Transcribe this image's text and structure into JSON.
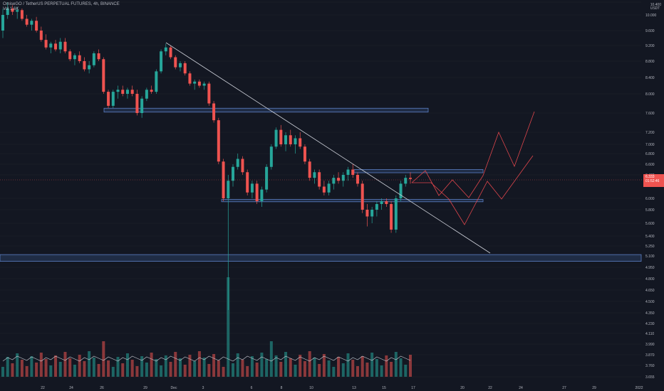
{
  "header": {
    "symbol_line": "OmiseGO / TetherUS PERPETUAL FUTURES, 4h, BINANCE",
    "indicator_label": "Vol 1.6K"
  },
  "price_tag": {
    "price": "6.333",
    "countdown": "01:52:46"
  },
  "axis_unit": {
    "top": "10.400",
    "unit": "USDT"
  },
  "chart_data": {
    "type": "candlestick",
    "y_ticks": [
      "10.400",
      "10.000",
      "9.600",
      "9.200",
      "8.800",
      "8.400",
      "8.000",
      "7.600",
      "7.200",
      "7.000",
      "6.800",
      "6.600",
      "6.400",
      "6.000",
      "5.800",
      "5.600",
      "5.400",
      "5.250",
      "5.100",
      "4.950",
      "4.800",
      "4.650",
      "4.500",
      "4.350",
      "4.230",
      "4.110",
      "3.990",
      "3.870",
      "3.760",
      "3.655"
    ],
    "x_ticks": [
      "22",
      "24",
      "26",
      "29",
      "Dec",
      "3",
      "6",
      "8",
      "10",
      "13",
      "15",
      "17",
      "20",
      "22",
      "24",
      "27",
      "29",
      "2022"
    ],
    "levels": [
      {
        "kind": "resistance-zone",
        "price_hi": 7.7,
        "price_lo": 7.62
      },
      {
        "kind": "zone",
        "price_hi": 6.5,
        "price_lo": 6.44
      },
      {
        "kind": "zone",
        "price_hi": 5.98,
        "price_lo": 5.94
      },
      {
        "kind": "support-zone",
        "price_hi": 5.12,
        "price_lo": 5.02
      }
    ],
    "trendline": {
      "from": {
        "x": "27 Nov",
        "price": 9.3
      },
      "to": {
        "x": "22 Dec",
        "price": 5.1
      }
    },
    "candles": [
      {
        "o": 9.6,
        "h": 10.2,
        "l": 9.4,
        "c": 10.0
      },
      {
        "o": 10.0,
        "h": 10.4,
        "l": 9.9,
        "c": 10.2
      },
      {
        "o": 10.2,
        "h": 10.3,
        "l": 10.0,
        "c": 10.1
      },
      {
        "o": 10.1,
        "h": 10.25,
        "l": 9.9,
        "c": 10.15
      },
      {
        "o": 10.15,
        "h": 10.2,
        "l": 9.85,
        "c": 9.9
      },
      {
        "o": 9.9,
        "h": 10.0,
        "l": 9.7,
        "c": 9.75
      },
      {
        "o": 9.75,
        "h": 9.9,
        "l": 9.6,
        "c": 9.85
      },
      {
        "o": 9.85,
        "h": 9.95,
        "l": 9.55,
        "c": 9.6
      },
      {
        "o": 9.6,
        "h": 9.7,
        "l": 9.3,
        "c": 9.35
      },
      {
        "o": 9.35,
        "h": 9.5,
        "l": 9.1,
        "c": 9.15
      },
      {
        "o": 9.15,
        "h": 9.3,
        "l": 9.0,
        "c": 9.25
      },
      {
        "o": 9.25,
        "h": 9.35,
        "l": 9.05,
        "c": 9.1
      },
      {
        "o": 9.1,
        "h": 9.4,
        "l": 9.0,
        "c": 9.3
      },
      {
        "o": 9.3,
        "h": 9.4,
        "l": 9.0,
        "c": 9.05
      },
      {
        "o": 9.05,
        "h": 9.1,
        "l": 8.8,
        "c": 8.85
      },
      {
        "o": 8.85,
        "h": 9.0,
        "l": 8.7,
        "c": 8.95
      },
      {
        "o": 8.95,
        "h": 9.05,
        "l": 8.75,
        "c": 8.8
      },
      {
        "o": 8.8,
        "h": 8.9,
        "l": 8.55,
        "c": 8.6
      },
      {
        "o": 8.6,
        "h": 8.8,
        "l": 8.5,
        "c": 8.7
      },
      {
        "o": 8.7,
        "h": 9.05,
        "l": 8.65,
        "c": 9.0
      },
      {
        "o": 9.0,
        "h": 9.1,
        "l": 8.8,
        "c": 8.85
      },
      {
        "o": 8.85,
        "h": 8.9,
        "l": 8.0,
        "c": 8.05
      },
      {
        "o": 8.05,
        "h": 8.1,
        "l": 7.7,
        "c": 7.75
      },
      {
        "o": 7.75,
        "h": 8.1,
        "l": 7.7,
        "c": 8.05
      },
      {
        "o": 8.05,
        "h": 8.2,
        "l": 7.9,
        "c": 8.1
      },
      {
        "o": 8.1,
        "h": 8.2,
        "l": 7.95,
        "c": 8.0
      },
      {
        "o": 8.0,
        "h": 8.15,
        "l": 7.9,
        "c": 8.1
      },
      {
        "o": 8.1,
        "h": 8.2,
        "l": 7.95,
        "c": 8.0
      },
      {
        "o": 8.0,
        "h": 8.1,
        "l": 7.55,
        "c": 7.6
      },
      {
        "o": 7.6,
        "h": 7.95,
        "l": 7.5,
        "c": 7.9
      },
      {
        "o": 7.9,
        "h": 8.15,
        "l": 7.85,
        "c": 8.1
      },
      {
        "o": 8.1,
        "h": 8.2,
        "l": 8.0,
        "c": 8.05
      },
      {
        "o": 8.05,
        "h": 8.6,
        "l": 8.0,
        "c": 8.55
      },
      {
        "o": 8.55,
        "h": 9.1,
        "l": 8.5,
        "c": 9.05
      },
      {
        "o": 9.05,
        "h": 9.25,
        "l": 8.95,
        "c": 9.15
      },
      {
        "o": 9.15,
        "h": 9.2,
        "l": 8.85,
        "c": 8.9
      },
      {
        "o": 8.9,
        "h": 8.95,
        "l": 8.6,
        "c": 8.65
      },
      {
        "o": 8.65,
        "h": 8.8,
        "l": 8.55,
        "c": 8.75
      },
      {
        "o": 8.75,
        "h": 8.8,
        "l": 8.45,
        "c": 8.5
      },
      {
        "o": 8.5,
        "h": 8.55,
        "l": 8.2,
        "c": 8.25
      },
      {
        "o": 8.25,
        "h": 8.35,
        "l": 8.1,
        "c": 8.3
      },
      {
        "o": 8.3,
        "h": 8.35,
        "l": 8.15,
        "c": 8.2
      },
      {
        "o": 8.2,
        "h": 8.3,
        "l": 8.1,
        "c": 8.25
      },
      {
        "o": 8.25,
        "h": 8.3,
        "l": 7.75,
        "c": 7.8
      },
      {
        "o": 7.8,
        "h": 7.85,
        "l": 7.4,
        "c": 7.45
      },
      {
        "o": 7.45,
        "h": 7.5,
        "l": 6.6,
        "c": 6.65
      },
      {
        "o": 6.65,
        "h": 6.7,
        "l": 5.95,
        "c": 6.0
      },
      {
        "o": 6.0,
        "h": 6.4,
        "l": 4.3,
        "c": 6.3
      },
      {
        "o": 6.3,
        "h": 6.6,
        "l": 6.2,
        "c": 6.55
      },
      {
        "o": 6.55,
        "h": 6.8,
        "l": 6.5,
        "c": 6.7
      },
      {
        "o": 6.7,
        "h": 6.75,
        "l": 6.4,
        "c": 6.45
      },
      {
        "o": 6.45,
        "h": 6.5,
        "l": 6.05,
        "c": 6.1
      },
      {
        "o": 6.1,
        "h": 6.3,
        "l": 6.0,
        "c": 6.25
      },
      {
        "o": 6.25,
        "h": 6.3,
        "l": 5.9,
        "c": 5.95
      },
      {
        "o": 5.95,
        "h": 6.2,
        "l": 5.85,
        "c": 6.15
      },
      {
        "o": 6.15,
        "h": 6.6,
        "l": 6.1,
        "c": 6.55
      },
      {
        "o": 6.55,
        "h": 7.0,
        "l": 6.5,
        "c": 6.95
      },
      {
        "o": 6.95,
        "h": 7.3,
        "l": 6.9,
        "c": 7.25
      },
      {
        "o": 7.25,
        "h": 7.35,
        "l": 6.95,
        "c": 7.0
      },
      {
        "o": 7.0,
        "h": 7.2,
        "l": 6.85,
        "c": 7.15
      },
      {
        "o": 7.15,
        "h": 7.25,
        "l": 6.95,
        "c": 7.0
      },
      {
        "o": 7.0,
        "h": 7.15,
        "l": 6.8,
        "c": 7.1
      },
      {
        "o": 7.1,
        "h": 7.2,
        "l": 6.9,
        "c": 6.95
      },
      {
        "o": 6.95,
        "h": 7.0,
        "l": 6.6,
        "c": 6.65
      },
      {
        "o": 6.65,
        "h": 6.7,
        "l": 6.3,
        "c": 6.35
      },
      {
        "o": 6.35,
        "h": 6.5,
        "l": 6.25,
        "c": 6.45
      },
      {
        "o": 6.45,
        "h": 6.5,
        "l": 6.15,
        "c": 6.2
      },
      {
        "o": 6.2,
        "h": 6.3,
        "l": 6.05,
        "c": 6.1
      },
      {
        "o": 6.1,
        "h": 6.3,
        "l": 6.05,
        "c": 6.25
      },
      {
        "o": 6.25,
        "h": 6.4,
        "l": 6.15,
        "c": 6.35
      },
      {
        "o": 6.35,
        "h": 6.45,
        "l": 6.25,
        "c": 6.3
      },
      {
        "o": 6.3,
        "h": 6.45,
        "l": 6.2,
        "c": 6.4
      },
      {
        "o": 6.4,
        "h": 6.55,
        "l": 6.3,
        "c": 6.5
      },
      {
        "o": 6.5,
        "h": 6.6,
        "l": 6.35,
        "c": 6.4
      },
      {
        "o": 6.4,
        "h": 6.45,
        "l": 6.2,
        "c": 6.25
      },
      {
        "o": 6.25,
        "h": 6.3,
        "l": 5.75,
        "c": 5.8
      },
      {
        "o": 5.8,
        "h": 5.9,
        "l": 5.55,
        "c": 5.7
      },
      {
        "o": 5.7,
        "h": 5.85,
        "l": 5.6,
        "c": 5.8
      },
      {
        "o": 5.8,
        "h": 5.95,
        "l": 5.7,
        "c": 5.9
      },
      {
        "o": 5.9,
        "h": 6.0,
        "l": 5.8,
        "c": 5.95
      },
      {
        "o": 5.95,
        "h": 6.0,
        "l": 5.85,
        "c": 5.9
      },
      {
        "o": 5.9,
        "h": 5.95,
        "l": 5.45,
        "c": 5.5
      },
      {
        "o": 5.5,
        "h": 6.05,
        "l": 5.45,
        "c": 6.0
      },
      {
        "o": 6.0,
        "h": 6.3,
        "l": 5.95,
        "c": 6.25
      },
      {
        "o": 6.25,
        "h": 6.4,
        "l": 6.2,
        "c": 6.35
      },
      {
        "o": 6.35,
        "h": 6.45,
        "l": 6.25,
        "c": 6.33
      }
    ],
    "projections": [
      {
        "color": "#e0464c",
        "points": [
          [
            578,
            257
          ],
          [
            597,
            240
          ],
          [
            616,
            275
          ],
          [
            635,
            253
          ],
          [
            658,
            278
          ],
          [
            678,
            247
          ],
          [
            700,
            186
          ],
          [
            722,
            234
          ],
          [
            750,
            157
          ]
        ]
      },
      {
        "color": "#e0464c",
        "points": [
          [
            578,
            257
          ],
          [
            605,
            257
          ],
          [
            630,
            280
          ],
          [
            652,
            316
          ],
          [
            684,
            255
          ],
          [
            704,
            280
          ],
          [
            748,
            219
          ]
        ]
      }
    ]
  }
}
